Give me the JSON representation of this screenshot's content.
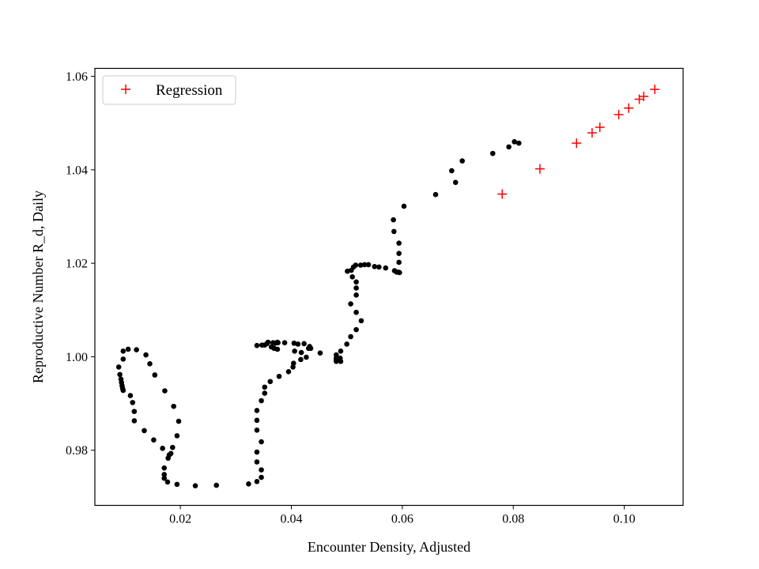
{
  "chart_data": {
    "type": "scatter",
    "title": "",
    "xlabel": "Encounter Density, Adjusted",
    "ylabel": "Reproductive Number R_d, Daily",
    "xlim": [
      0.0046,
      0.1106
    ],
    "ylim": [
      0.9682,
      1.0617
    ],
    "xticks": [
      0.02,
      0.04,
      0.06,
      0.08,
      0.1
    ],
    "xtick_labels": [
      "0.02",
      "0.04",
      "0.06",
      "0.08",
      "0.10"
    ],
    "yticks": [
      0.98,
      1.0,
      1.02,
      1.04,
      1.06
    ],
    "ytick_labels": [
      "0.98",
      "1.00",
      "1.02",
      "1.04",
      "1.06"
    ],
    "grid": false,
    "legend": {
      "position": "top-left",
      "entries": [
        "Regression"
      ]
    },
    "series": [
      {
        "name": "Observed",
        "marker": "circle",
        "color": "#000000",
        "in_legend": false,
        "points": [
          [
            0.0089,
            0.9978
          ],
          [
            0.0091,
            0.9962
          ],
          [
            0.0093,
            0.9952
          ],
          [
            0.0094,
            0.9945
          ],
          [
            0.0095,
            0.9938
          ],
          [
            0.0096,
            0.9932
          ],
          [
            0.0097,
            0.9928
          ],
          [
            0.0097,
            0.9995
          ],
          [
            0.0097,
            1.0012
          ],
          [
            0.0106,
            1.0016
          ],
          [
            0.011,
            0.9917
          ],
          [
            0.0114,
            0.9902
          ],
          [
            0.0117,
            0.9883
          ],
          [
            0.0117,
            0.9863
          ],
          [
            0.0121,
            1.0015
          ],
          [
            0.0135,
            0.9842
          ],
          [
            0.0138,
            1.0004
          ],
          [
            0.0145,
            0.9985
          ],
          [
            0.0152,
            0.9822
          ],
          [
            0.0154,
            0.9961
          ],
          [
            0.0168,
            0.9804
          ],
          [
            0.0171,
            0.9762
          ],
          [
            0.0171,
            0.9748
          ],
          [
            0.0171,
            0.974
          ],
          [
            0.0172,
            0.9927
          ],
          [
            0.0177,
            0.9732
          ],
          [
            0.0178,
            0.9783
          ],
          [
            0.018,
            0.979
          ],
          [
            0.0183,
            0.9793
          ],
          [
            0.0186,
            0.9806
          ],
          [
            0.0188,
            0.9894
          ],
          [
            0.0194,
            0.9727
          ],
          [
            0.0194,
            0.9831
          ],
          [
            0.0197,
            0.9862
          ],
          [
            0.0227,
            0.9724
          ],
          [
            0.0265,
            0.9725
          ],
          [
            0.0323,
            0.9728
          ],
          [
            0.0338,
            0.9733
          ],
          [
            0.0338,
            0.9775
          ],
          [
            0.0338,
            0.9796
          ],
          [
            0.0338,
            0.9843
          ],
          [
            0.0338,
            0.9864
          ],
          [
            0.0338,
            0.9885
          ],
          [
            0.0338,
            1.0024
          ],
          [
            0.0346,
            0.9742
          ],
          [
            0.0346,
            0.9758
          ],
          [
            0.0346,
            0.9818
          ],
          [
            0.0346,
            0.9906
          ],
          [
            0.0347,
            1.0025
          ],
          [
            0.0352,
            0.9922
          ],
          [
            0.0352,
            0.9935
          ],
          [
            0.0352,
            1.0025
          ],
          [
            0.0356,
            1.0028
          ],
          [
            0.0358,
            1.0031
          ],
          [
            0.0362,
            0.9947
          ],
          [
            0.0364,
            1.0021
          ],
          [
            0.0367,
            1.003
          ],
          [
            0.0369,
            1.0018
          ],
          [
            0.0371,
            1.0029
          ],
          [
            0.0375,
            1.0031
          ],
          [
            0.0375,
            1.0016
          ],
          [
            0.0376,
            1.003
          ],
          [
            0.0378,
            0.9958
          ],
          [
            0.0388,
            1.003
          ],
          [
            0.0395,
            0.9968
          ],
          [
            0.0403,
            0.9978
          ],
          [
            0.0404,
            0.9986
          ],
          [
            0.0405,
            1.0029
          ],
          [
            0.0406,
            1.0012
          ],
          [
            0.0412,
            1.0027
          ],
          [
            0.0417,
            0.9994
          ],
          [
            0.0418,
            1.0009
          ],
          [
            0.0423,
            1.0028
          ],
          [
            0.0427,
            0.9999
          ],
          [
            0.0431,
            1.0018
          ],
          [
            0.0433,
            1.0022
          ],
          [
            0.0435,
            1.0018
          ],
          [
            0.0452,
            1.0008
          ],
          [
            0.0481,
            1.0004
          ],
          [
            0.0481,
            0.9997
          ],
          [
            0.0481,
            0.999
          ],
          [
            0.0481,
            0.9994
          ],
          [
            0.0488,
            0.9997
          ],
          [
            0.0489,
            0.999
          ],
          [
            0.0489,
            1.0012
          ],
          [
            0.05,
            1.0027
          ],
          [
            0.0501,
            1.0183
          ],
          [
            0.0507,
            1.0043
          ],
          [
            0.0507,
            1.0113
          ],
          [
            0.0508,
            1.0185
          ],
          [
            0.051,
            1.0171
          ],
          [
            0.0512,
            1.0192
          ],
          [
            0.0516,
            1.0196
          ],
          [
            0.0517,
            1.0058
          ],
          [
            0.0517,
            1.0095
          ],
          [
            0.0517,
            1.0132
          ],
          [
            0.0517,
            1.0147
          ],
          [
            0.0517,
            1.016
          ],
          [
            0.0525,
            1.0196
          ],
          [
            0.0526,
            1.0077
          ],
          [
            0.0532,
            1.0197
          ],
          [
            0.0539,
            1.0197
          ],
          [
            0.055,
            1.0193
          ],
          [
            0.0558,
            1.0192
          ],
          [
            0.057,
            1.019
          ],
          [
            0.0584,
            1.0293
          ],
          [
            0.0585,
            1.0268
          ],
          [
            0.0586,
            1.0184
          ],
          [
            0.059,
            1.0181
          ],
          [
            0.0593,
            1.0181
          ],
          [
            0.0594,
            1.0243
          ],
          [
            0.0594,
            1.0221
          ],
          [
            0.0594,
            1.0202
          ],
          [
            0.0595,
            1.018
          ],
          [
            0.0603,
            1.0322
          ],
          [
            0.066,
            1.0347
          ],
          [
            0.0689,
            1.0398
          ],
          [
            0.0696,
            1.0373
          ],
          [
            0.0708,
            1.0419
          ],
          [
            0.0763,
            1.0435
          ],
          [
            0.0792,
            1.0449
          ],
          [
            0.0802,
            1.046
          ],
          [
            0.081,
            1.0457
          ]
        ]
      },
      {
        "name": "Regression",
        "marker": "plus",
        "color": "#ff0000",
        "in_legend": true,
        "points": [
          [
            0.078,
            1.0348
          ],
          [
            0.0848,
            1.0402
          ],
          [
            0.0914,
            1.0457
          ],
          [
            0.0942,
            1.0479
          ],
          [
            0.0956,
            1.0491
          ],
          [
            0.099,
            1.0518
          ],
          [
            0.1008,
            1.0532
          ],
          [
            0.1027,
            1.0551
          ],
          [
            0.1035,
            1.0557
          ],
          [
            0.1055,
            1.0572
          ]
        ]
      }
    ]
  }
}
